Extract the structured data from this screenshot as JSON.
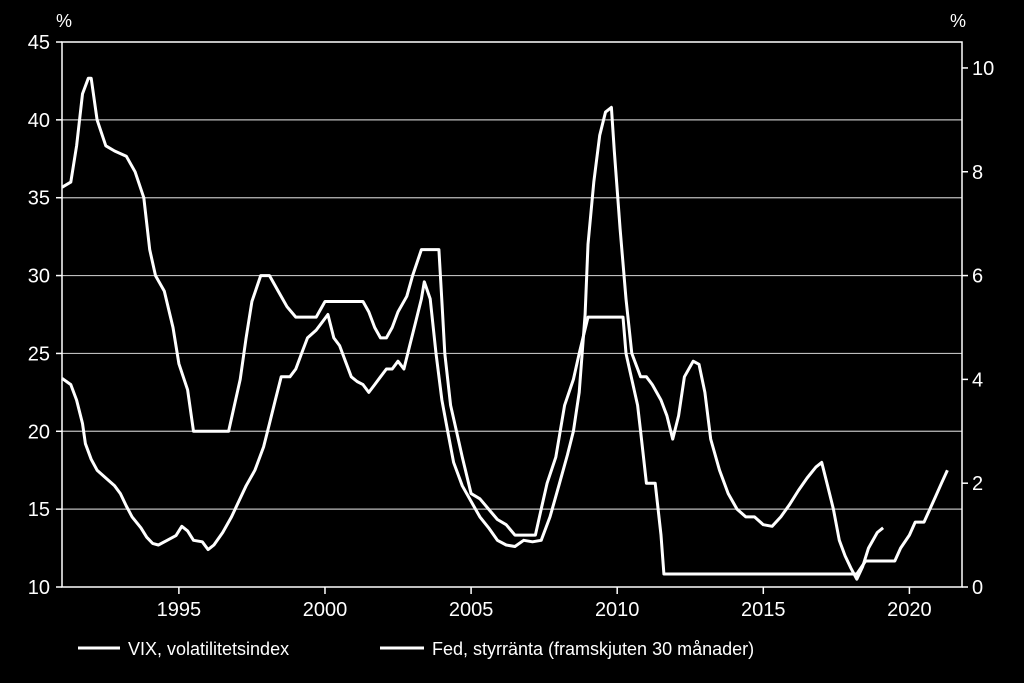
{
  "chart_data": {
    "type": "line",
    "left_unit": "%",
    "right_unit": "%",
    "x_ticks": [
      "1995",
      "2000",
      "2005",
      "2010",
      "2015",
      "2020"
    ],
    "y_left": {
      "ticks": [
        "10",
        "15",
        "20",
        "25",
        "30",
        "35",
        "40",
        "45"
      ],
      "range": [
        10,
        45
      ]
    },
    "y_right": {
      "ticks": [
        "0",
        "2",
        "4",
        "6",
        "8",
        "10"
      ],
      "range": [
        0,
        10.5
      ]
    },
    "grid": true,
    "legend_position": "bottom",
    "xlim": [
      1991,
      2021.8
    ],
    "series": [
      {
        "name": "VIX, volatilitetsindex",
        "axis": "left",
        "color": "#ffffff",
        "points": [
          [
            1991.0,
            23.4
          ],
          [
            1991.3,
            23.0
          ],
          [
            1991.5,
            22.0
          ],
          [
            1991.7,
            20.5
          ],
          [
            1991.8,
            19.2
          ],
          [
            1992.0,
            18.2
          ],
          [
            1992.2,
            17.5
          ],
          [
            1992.5,
            17.0
          ],
          [
            1992.8,
            16.5
          ],
          [
            1993.0,
            16.0
          ],
          [
            1993.2,
            15.2
          ],
          [
            1993.4,
            14.5
          ],
          [
            1993.7,
            13.8
          ],
          [
            1993.9,
            13.2
          ],
          [
            1994.1,
            12.8
          ],
          [
            1994.3,
            12.7
          ],
          [
            1994.6,
            13.0
          ],
          [
            1994.9,
            13.3
          ],
          [
            1995.1,
            13.9
          ],
          [
            1995.3,
            13.6
          ],
          [
            1995.5,
            13.0
          ],
          [
            1995.8,
            12.9
          ],
          [
            1996.0,
            12.4
          ],
          [
            1996.2,
            12.7
          ],
          [
            1996.5,
            13.5
          ],
          [
            1996.8,
            14.5
          ],
          [
            1997.0,
            15.3
          ],
          [
            1997.3,
            16.5
          ],
          [
            1997.6,
            17.5
          ],
          [
            1997.9,
            19.0
          ],
          [
            1998.1,
            20.5
          ],
          [
            1998.3,
            22.0
          ],
          [
            1998.5,
            23.5
          ],
          [
            1998.8,
            23.5
          ],
          [
            1999.0,
            24.0
          ],
          [
            1999.2,
            25.0
          ],
          [
            1999.4,
            26.0
          ],
          [
            1999.7,
            26.5
          ],
          [
            1999.9,
            27.0
          ],
          [
            2000.1,
            27.5
          ],
          [
            2000.3,
            26.0
          ],
          [
            2000.5,
            25.5
          ],
          [
            2000.7,
            24.5
          ],
          [
            2000.9,
            23.5
          ],
          [
            2001.1,
            23.2
          ],
          [
            2001.3,
            23.0
          ],
          [
            2001.5,
            22.5
          ],
          [
            2001.7,
            23.0
          ],
          [
            2001.9,
            23.5
          ],
          [
            2002.1,
            24.0
          ],
          [
            2002.3,
            24.0
          ],
          [
            2002.5,
            24.5
          ],
          [
            2002.7,
            24.0
          ],
          [
            2002.9,
            25.5
          ],
          [
            2003.1,
            27.0
          ],
          [
            2003.3,
            28.5
          ],
          [
            2003.4,
            29.6
          ],
          [
            2003.6,
            28.5
          ],
          [
            2003.8,
            25.0
          ],
          [
            2004.0,
            22.0
          ],
          [
            2004.2,
            20.0
          ],
          [
            2004.4,
            18.0
          ],
          [
            2004.7,
            16.5
          ],
          [
            2005.0,
            15.5
          ],
          [
            2005.3,
            14.5
          ],
          [
            2005.6,
            13.8
          ],
          [
            2005.9,
            13.0
          ],
          [
            2006.2,
            12.7
          ],
          [
            2006.5,
            12.6
          ],
          [
            2006.8,
            13.0
          ],
          [
            2007.1,
            12.9
          ],
          [
            2007.4,
            13.0
          ],
          [
            2007.7,
            14.5
          ],
          [
            2008.0,
            16.5
          ],
          [
            2008.3,
            18.5
          ],
          [
            2008.5,
            20.0
          ],
          [
            2008.7,
            22.5
          ],
          [
            2008.9,
            27.5
          ],
          [
            2009.0,
            32.0
          ],
          [
            2009.2,
            36.0
          ],
          [
            2009.4,
            39.0
          ],
          [
            2009.6,
            40.5
          ],
          [
            2009.8,
            40.8
          ],
          [
            2009.9,
            38.0
          ],
          [
            2010.1,
            33.0
          ],
          [
            2010.3,
            28.5
          ],
          [
            2010.5,
            25.0
          ],
          [
            2010.8,
            23.5
          ],
          [
            2011.0,
            23.5
          ],
          [
            2011.2,
            23.0
          ],
          [
            2011.5,
            22.0
          ],
          [
            2011.7,
            21.0
          ],
          [
            2011.9,
            19.5
          ],
          [
            2012.1,
            21.0
          ],
          [
            2012.3,
            23.5
          ],
          [
            2012.6,
            24.5
          ],
          [
            2012.8,
            24.3
          ],
          [
            2013.0,
            22.5
          ],
          [
            2013.2,
            19.5
          ],
          [
            2013.5,
            17.5
          ],
          [
            2013.8,
            16.0
          ],
          [
            2014.1,
            15.0
          ],
          [
            2014.4,
            14.5
          ],
          [
            2014.7,
            14.5
          ],
          [
            2015.0,
            14.0
          ],
          [
            2015.3,
            13.9
          ],
          [
            2015.6,
            14.5
          ],
          [
            2015.9,
            15.3
          ],
          [
            2016.2,
            16.2
          ],
          [
            2016.5,
            17.0
          ],
          [
            2016.8,
            17.7
          ],
          [
            2017.0,
            18.0
          ],
          [
            2017.2,
            16.5
          ],
          [
            2017.4,
            15.0
          ],
          [
            2017.6,
            13.0
          ],
          [
            2017.8,
            12.0
          ],
          [
            2018.0,
            11.2
          ],
          [
            2018.2,
            10.5
          ],
          [
            2018.4,
            11.3
          ],
          [
            2018.6,
            12.5
          ],
          [
            2018.9,
            13.5
          ],
          [
            2019.1,
            13.8
          ]
        ]
      },
      {
        "name": "Fed, styrränta (framskjuten 30 månader)",
        "axis": "right",
        "color": "#ffffff",
        "points": [
          [
            1991.0,
            7.7
          ],
          [
            1991.3,
            7.8
          ],
          [
            1991.5,
            8.5
          ],
          [
            1991.7,
            9.5
          ],
          [
            1991.9,
            9.8
          ],
          [
            1992.0,
            9.8
          ],
          [
            1992.2,
            9.0
          ],
          [
            1992.5,
            8.5
          ],
          [
            1992.8,
            8.4
          ],
          [
            1993.2,
            8.3
          ],
          [
            1993.5,
            8.0
          ],
          [
            1993.8,
            7.5
          ],
          [
            1994.0,
            6.5
          ],
          [
            1994.2,
            6.0
          ],
          [
            1994.5,
            5.7
          ],
          [
            1994.8,
            5.0
          ],
          [
            1995.0,
            4.3
          ],
          [
            1995.3,
            3.8
          ],
          [
            1995.5,
            3.0
          ],
          [
            1995.8,
            3.0
          ],
          [
            1996.2,
            3.0
          ],
          [
            1996.7,
            3.0
          ],
          [
            1996.9,
            3.5
          ],
          [
            1997.1,
            4.0
          ],
          [
            1997.3,
            4.8
          ],
          [
            1997.5,
            5.5
          ],
          [
            1997.8,
            6.0
          ],
          [
            1998.1,
            6.0
          ],
          [
            1998.4,
            5.7
          ],
          [
            1998.7,
            5.4
          ],
          [
            1999.0,
            5.2
          ],
          [
            1999.3,
            5.2
          ],
          [
            1999.7,
            5.2
          ],
          [
            2000.0,
            5.5
          ],
          [
            2000.3,
            5.5
          ],
          [
            2000.7,
            5.5
          ],
          [
            2001.0,
            5.5
          ],
          [
            2001.3,
            5.5
          ],
          [
            2001.5,
            5.3
          ],
          [
            2001.7,
            5.0
          ],
          [
            2001.9,
            4.8
          ],
          [
            2002.1,
            4.8
          ],
          [
            2002.3,
            5.0
          ],
          [
            2002.5,
            5.3
          ],
          [
            2002.8,
            5.6
          ],
          [
            2003.0,
            6.0
          ],
          [
            2003.3,
            6.5
          ],
          [
            2003.6,
            6.5
          ],
          [
            2003.9,
            6.5
          ],
          [
            2004.0,
            5.5
          ],
          [
            2004.1,
            4.5
          ],
          [
            2004.3,
            3.5
          ],
          [
            2004.5,
            3.0
          ],
          [
            2004.7,
            2.5
          ],
          [
            2005.0,
            1.8
          ],
          [
            2005.3,
            1.7
          ],
          [
            2005.6,
            1.5
          ],
          [
            2005.9,
            1.3
          ],
          [
            2006.2,
            1.2
          ],
          [
            2006.5,
            1.0
          ],
          [
            2006.8,
            1.0
          ],
          [
            2007.2,
            1.0
          ],
          [
            2007.4,
            1.5
          ],
          [
            2007.6,
            2.0
          ],
          [
            2007.9,
            2.5
          ],
          [
            2008.2,
            3.5
          ],
          [
            2008.5,
            4.0
          ],
          [
            2008.7,
            4.5
          ],
          [
            2009.0,
            5.2
          ],
          [
            2009.3,
            5.2
          ],
          [
            2009.7,
            5.2
          ],
          [
            2010.0,
            5.2
          ],
          [
            2010.2,
            5.2
          ],
          [
            2010.3,
            4.5
          ],
          [
            2010.5,
            4.0
          ],
          [
            2010.7,
            3.5
          ],
          [
            2010.8,
            3.0
          ],
          [
            2010.9,
            2.5
          ],
          [
            2011.0,
            2.0
          ],
          [
            2011.3,
            2.0
          ],
          [
            2011.5,
            1.0
          ],
          [
            2011.6,
            0.25
          ],
          [
            2012.5,
            0.25
          ],
          [
            2014.0,
            0.25
          ],
          [
            2016.0,
            0.25
          ],
          [
            2017.5,
            0.25
          ],
          [
            2018.2,
            0.25
          ],
          [
            2018.5,
            0.5
          ],
          [
            2019.0,
            0.5
          ],
          [
            2019.5,
            0.5
          ],
          [
            2019.7,
            0.75
          ],
          [
            2020.0,
            1.0
          ],
          [
            2020.2,
            1.25
          ],
          [
            2020.5,
            1.25
          ],
          [
            2020.7,
            1.5
          ],
          [
            2020.9,
            1.75
          ],
          [
            2021.1,
            2.0
          ],
          [
            2021.3,
            2.25
          ]
        ]
      }
    ]
  }
}
